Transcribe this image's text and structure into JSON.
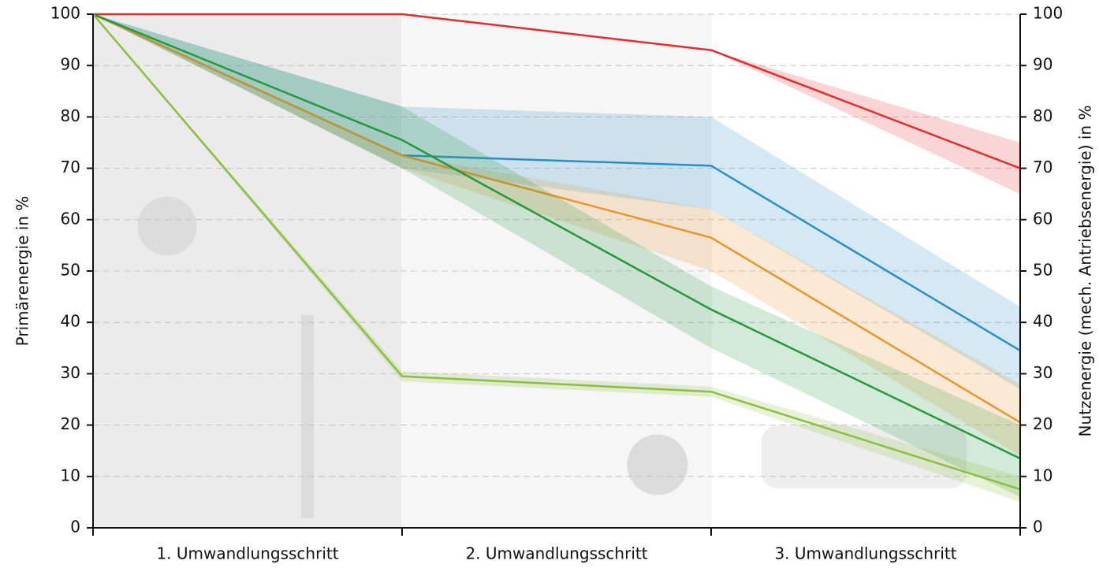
{
  "chart_data": {
    "type": "line",
    "ylabel": "Primärenergie in %",
    "y2label": "Nutzenergie (mech. Antriebsenergie) in %",
    "x": [
      0,
      1,
      2,
      3
    ],
    "xlim": [
      0,
      3
    ],
    "xticks": [
      {
        "value": 0.5,
        "label": "1. Umwandlungsschritt"
      },
      {
        "value": 1.5,
        "label": "2. Umwandlungsschritt"
      },
      {
        "value": 2.5,
        "label": "3. Umwandlungsschritt"
      }
    ],
    "ylim": [
      0,
      100
    ],
    "yticks": [
      0,
      10,
      20,
      30,
      40,
      50,
      60,
      70,
      80,
      90,
      100
    ],
    "y2lim": [
      0,
      100
    ],
    "y2ticks": [
      0,
      10,
      20,
      30,
      40,
      50,
      60,
      70,
      80,
      90,
      100
    ],
    "grid": true,
    "series": [
      {
        "color": "#e42d2b",
        "values": [
          100,
          100,
          93,
          70
        ],
        "low": [
          null,
          null,
          93,
          65
        ],
        "high": [
          null,
          null,
          93,
          75
        ]
      },
      {
        "color": "#2a8fc8",
        "values": [
          100,
          72.5,
          70.5,
          34.5
        ],
        "low": [
          100,
          70,
          62,
          27
        ],
        "high": [
          100,
          82,
          80,
          43
        ]
      },
      {
        "color": "#e8962b",
        "values": [
          100,
          72.5,
          56.5,
          20.5
        ],
        "low": [
          100,
          70,
          50,
          14
        ],
        "high": [
          100,
          72.5,
          62,
          28
        ]
      },
      {
        "color": "#23983c",
        "values": [
          100,
          75.5,
          42.5,
          13.5
        ],
        "low": [
          100,
          70,
          35,
          6
        ],
        "high": [
          100,
          82,
          47,
          20
        ]
      },
      {
        "color": "#8bbf3c",
        "values": [
          100,
          29.5,
          26.5,
          7.5
        ],
        "low": [
          100,
          28.5,
          25.5,
          5
        ],
        "high": [
          100,
          30.5,
          27.5,
          10
        ]
      }
    ]
  }
}
